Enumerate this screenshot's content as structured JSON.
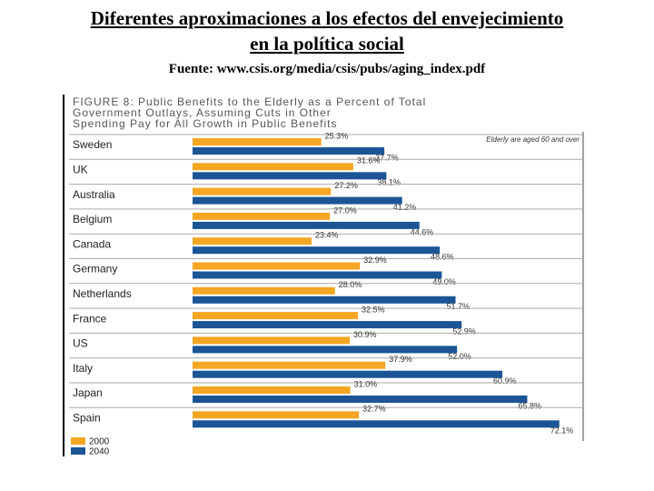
{
  "header": {
    "title_lines": [
      "Diferentes aproximaciones a los efectos del envejecimiento",
      "en la política social"
    ],
    "source": "Fuente: www.csis.org/media/csis/pubs/aging_index.pdf"
  },
  "chart_data": {
    "type": "bar",
    "orientation": "horizontal",
    "title_lines": [
      "FIGURE 8:  Public Benefits to the Elderly as a Percent of Total",
      "Government Outlays, Assuming Cuts in Other",
      "Spending Pay for All Growth in Public Benefits"
    ],
    "note": "Elderly are aged 60 and over",
    "categories": [
      "Sweden",
      "UK",
      "Australia",
      "Belgium",
      "Canada",
      "Germany",
      "Netherlands",
      "France",
      "US",
      "Italy",
      "Japan",
      "Spain"
    ],
    "series": [
      {
        "name": "2000",
        "color": "#f5a623",
        "values": [
          25.3,
          31.6,
          27.2,
          27.0,
          23.4,
          32.9,
          28.0,
          32.5,
          30.9,
          37.9,
          31.0,
          32.7
        ],
        "value_labels": [
          "25.3%",
          "31.6%",
          "27.2%",
          "27.0%",
          "23.4%",
          "32.9%",
          "28.0%",
          "32.5%",
          "30.9%",
          "37.9%",
          "31.0%",
          "32.7%"
        ]
      },
      {
        "name": "2040",
        "color": "#1c5596",
        "values": [
          37.7,
          38.1,
          41.2,
          44.6,
          48.6,
          49.0,
          51.7,
          52.9,
          52.0,
          60.9,
          65.8,
          72.1
        ],
        "value_labels": [
          "37.7%",
          "38.1%",
          "41.2%",
          "44.6%",
          "48.6%",
          "49.0%",
          "51.7%",
          "52.9%",
          "52.0%",
          "60.9%",
          "65.8%",
          "72.1%"
        ]
      }
    ],
    "legend": "bottom-left"
  }
}
